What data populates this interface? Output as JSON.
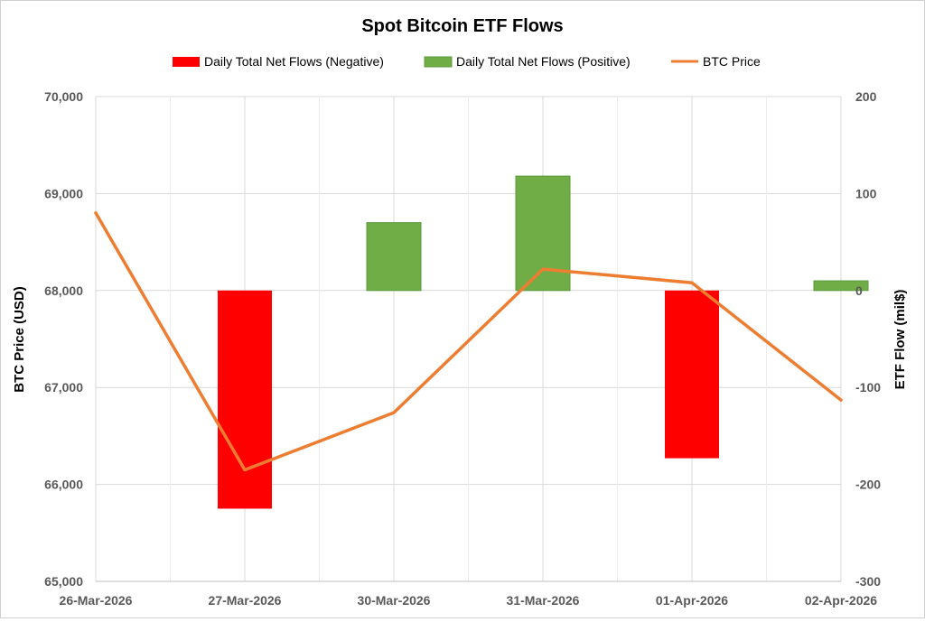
{
  "chart_data": {
    "type": "bar+line",
    "title": "Spot Bitcoin ETF Flows",
    "categories": [
      "26-Mar-2026",
      "27-Mar-2026",
      "30-Mar-2026",
      "31-Mar-2026",
      "01-Apr-2026",
      "02-Apr-2026"
    ],
    "series": [
      {
        "name": "Daily Total Net Flows (Negative)",
        "type": "bar",
        "axis": "right",
        "color": "#ff0000",
        "values": [
          null,
          -225,
          null,
          null,
          -173,
          null
        ]
      },
      {
        "name": "Daily Total Net Flows (Positive)",
        "type": "bar",
        "axis": "right",
        "color": "#70ad47",
        "values": [
          null,
          null,
          70,
          118,
          null,
          10
        ]
      },
      {
        "name": "BTC Price",
        "type": "line",
        "axis": "left",
        "color": "#ed7d31",
        "values": [
          68800,
          66150,
          66740,
          68220,
          68080,
          66870
        ]
      }
    ],
    "ylabel_left": "BTC Price (USD)",
    "ylabel_right": "ETF Flow (mil$)",
    "ylim_left": [
      65000,
      70000
    ],
    "ylim_right": [
      -300,
      200
    ],
    "yticks_left": [
      "65,000",
      "66,000",
      "67,000",
      "68,000",
      "69,000",
      "70,000"
    ],
    "yticks_right": [
      "-300",
      "-200",
      "-100",
      "0",
      "100",
      "200"
    ],
    "legend_position": "top"
  }
}
